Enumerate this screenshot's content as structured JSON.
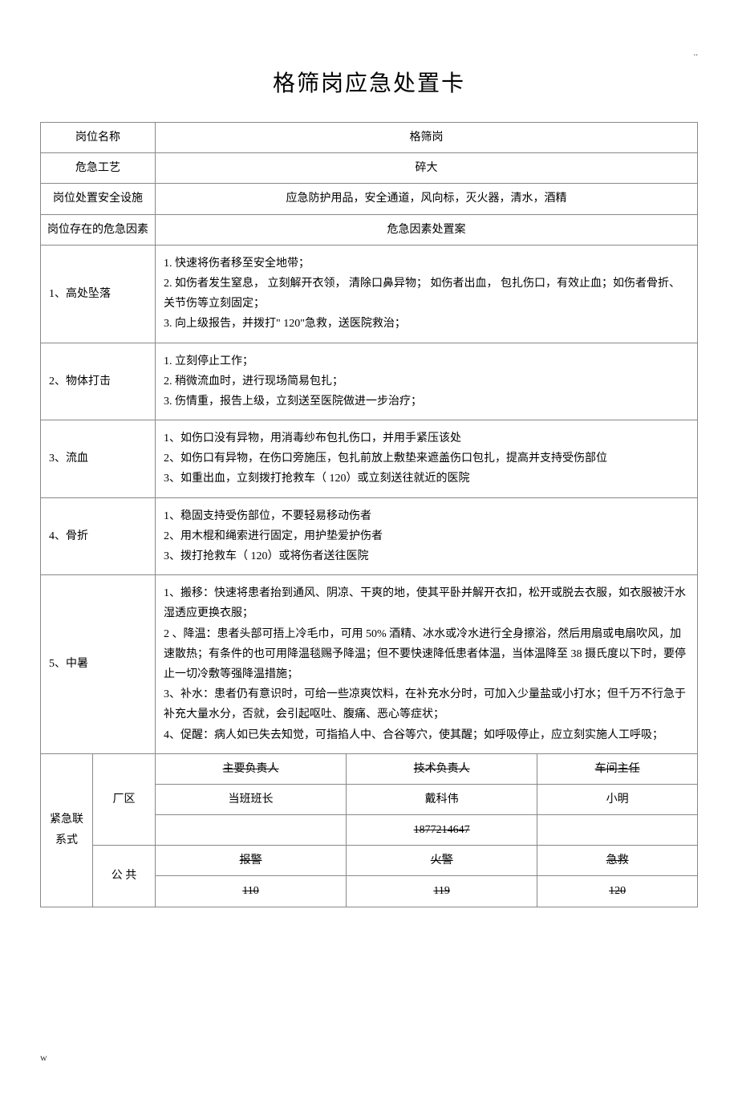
{
  "pageMarker": "..",
  "title": "格筛岗应急处置卡",
  "headers": {
    "positionName": "岗位名称",
    "positionNameVal": "格筛岗",
    "hazardProcess": "危急工艺",
    "hazardProcessVal": "碎大",
    "safetyFacility": "岗位处置安全设施",
    "safetyFacilityVal": "应急防护用品，安全通道，风向标，灭火器，清水，酒精",
    "hazardFactor": "岗位存在的危急因素",
    "hazardPlan": "危急因素处置案"
  },
  "rows": [
    {
      "label": "1、高处坠落",
      "content": "1. 快速将伤者移至安全地带；\n2. 如伤者发生窒息， 立刻解开衣领， 清除口鼻异物； 如伤者出血， 包扎伤口，有效止血；如伤者骨折、关节伤等立刻固定；\n3. 向上级报告，并拨打\" 120\"急救，送医院救治；"
    },
    {
      "label": "2、物体打击",
      "content": "1. 立刻停止工作；\n2. 稍微流血时，进行现场简易包扎；\n3. 伤情重，报告上级，立刻送至医院做进一步治疗；"
    },
    {
      "label": "3、流血",
      "content": "1、如伤口没有异物，用消毒纱布包扎伤口，并用手紧压该处\n2、如伤口有异物，在伤口旁施压，包扎前放上敷垫来遮盖伤口包扎，提高并支持受伤部位\n3、如重出血，立刻拨打抢救车（    120）或立刻送往就近的医院"
    },
    {
      "label": "4、骨折",
      "content": "1、稳固支持受伤部位，不要轻易移动伤者\n2、用木棍和绳索进行固定，用护垫爱护伤者\n3、拨打抢救车（  120）或将伤者送往医院"
    },
    {
      "label": "5、中暑",
      "content": "1、搬移：快速将患者抬到通风、阴凉、干爽的地，使其平卧并解开衣扣，松开或脱去衣服，如衣服被汗水湿透应更换衣服；\n 2 、降温：患者头部可捂上冷毛巾，可用          50% 酒精、冰水或冷水进行全身擦浴，然后用扇或电扇吹风，加速散热；有条件的也可用降温毯赐予降温；但不要快速降低患者体温，当体温降至       38 摄氏度以下时，要停止一切冷敷等强降温措施；\n3、补水：患者仍有意识时，可给一些凉爽饮料，在补充水分时，可加入少量盐或小打水；但千万不行急于补充大量水分，否就，会引起呕吐、腹痛、恶心等症状；\n4、促醒：病人如已失去知觉，可指掐人中、合谷等穴，使其醒；如呼吸停止，应立刻实施人工呼吸；"
    }
  ],
  "contact": {
    "label": "紧急联系式",
    "area": {
      "sub": "厂区",
      "h1": "主要负责人",
      "h2": "技术负责人",
      "h3": "车间主任",
      "v1": "当班班长",
      "v2": "戴科伟",
      "v3": "小明",
      "phone": "1877214647"
    },
    "public": {
      "sub": "公  共",
      "h1": "报警",
      "h2": "火警",
      "h3": "急救",
      "v1": "110",
      "v2": "119",
      "v3": "120"
    }
  },
  "footer": "w"
}
